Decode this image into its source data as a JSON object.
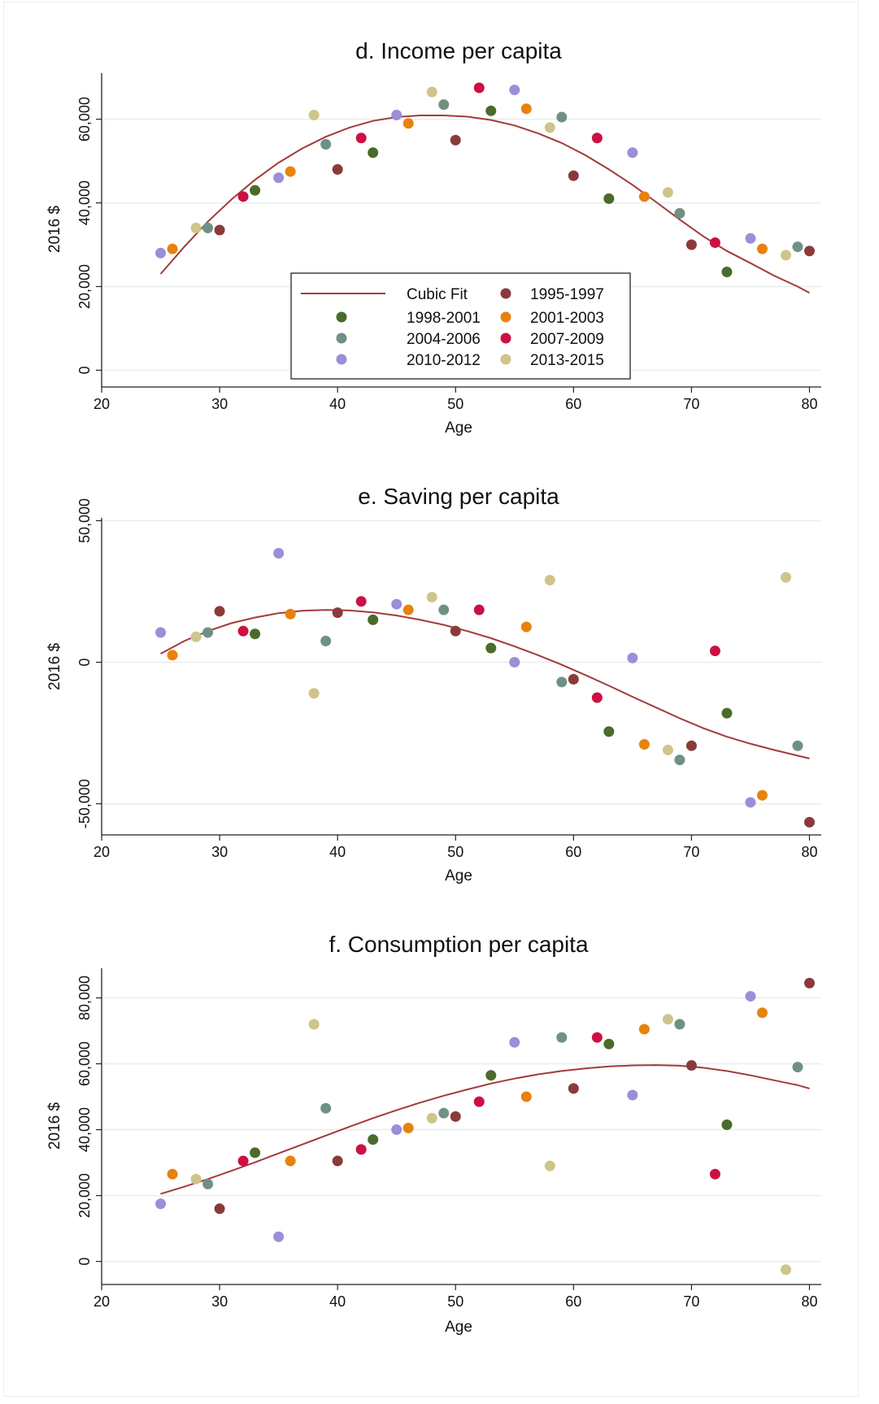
{
  "period_colors": {
    "1995-1997": "#8b3a3a",
    "1998-2001": "#4a6b2a",
    "2001-2003": "#e8820c",
    "2004-2006": "#6f9184",
    "2007-2009": "#cc1043",
    "2010-2012": "#9a8fd8",
    "2013-2015": "#cfc48a"
  },
  "fit_color": "#a23b3b",
  "grid_color": "#e6eef0",
  "chart_data": [
    {
      "type": "scatter",
      "title": "d. Income per capita",
      "xlabel": "Age",
      "ylabel": "2016 $",
      "xlim": [
        20,
        81
      ],
      "ylim": [
        -4000,
        71000
      ],
      "xticks": [
        20,
        30,
        40,
        50,
        60,
        70,
        80
      ],
      "xtick_labels": [
        "20",
        "30",
        "40",
        "50",
        "60",
        "70",
        "80"
      ],
      "yticks": [
        0,
        20000,
        40000,
        60000
      ],
      "ytick_labels": [
        "0",
        "20,000",
        "40,000",
        "60,000"
      ],
      "grid": true,
      "legend": {
        "position": "inside-bottom-center",
        "entries": [
          "Cubic Fit",
          "1995-1997",
          "1998-2001",
          "2001-2003",
          "2004-2006",
          "2007-2009",
          "2010-2012",
          "2013-2015"
        ]
      },
      "fit": {
        "name": "Cubic Fit",
        "x": [
          25,
          27,
          29,
          31,
          33,
          35,
          37,
          39,
          41,
          43,
          45,
          47,
          49,
          51,
          53,
          55,
          57,
          59,
          61,
          63,
          65,
          67,
          69,
          71,
          73,
          75,
          77,
          79,
          80
        ],
        "y": [
          23000,
          29500,
          35500,
          40800,
          45500,
          49600,
          53000,
          55800,
          58000,
          59600,
          60500,
          60900,
          60900,
          60600,
          59800,
          58500,
          56600,
          54300,
          51400,
          48000,
          44300,
          40200,
          36000,
          32000,
          28500,
          25600,
          22600,
          20000,
          18500
        ]
      },
      "series": [
        {
          "name": "1995-1997",
          "points": [
            [
              30,
              33500
            ],
            [
              40,
              48000
            ],
            [
              50,
              55000
            ],
            [
              60,
              46500
            ],
            [
              70,
              30000
            ],
            [
              80,
              28500
            ]
          ]
        },
        {
          "name": "1998-2001",
          "points": [
            [
              33,
              43000
            ],
            [
              43,
              52000
            ],
            [
              53,
              62000
            ],
            [
              63,
              41000
            ],
            [
              73,
              23500
            ]
          ]
        },
        {
          "name": "2001-2003",
          "points": [
            [
              26,
              29000
            ],
            [
              36,
              47500
            ],
            [
              46,
              59000
            ],
            [
              56,
              62500
            ],
            [
              66,
              41500
            ],
            [
              76,
              29000
            ]
          ]
        },
        {
          "name": "2004-2006",
          "points": [
            [
              29,
              34000
            ],
            [
              39,
              54000
            ],
            [
              49,
              63500
            ],
            [
              59,
              60500
            ],
            [
              69,
              37500
            ],
            [
              79,
              29500
            ]
          ]
        },
        {
          "name": "2007-2009",
          "points": [
            [
              32,
              41500
            ],
            [
              42,
              55500
            ],
            [
              52,
              67500
            ],
            [
              62,
              55500
            ],
            [
              72,
              30500
            ]
          ]
        },
        {
          "name": "2010-2012",
          "points": [
            [
              25,
              28000
            ],
            [
              35,
              46000
            ],
            [
              45,
              61000
            ],
            [
              55,
              67000
            ],
            [
              65,
              52000
            ],
            [
              75,
              31500
            ]
          ]
        },
        {
          "name": "2013-2015",
          "points": [
            [
              28,
              34000
            ],
            [
              38,
              61000
            ],
            [
              48,
              66500
            ],
            [
              58,
              58000
            ],
            [
              68,
              42500
            ],
            [
              78,
              27500
            ]
          ]
        }
      ]
    },
    {
      "type": "scatter",
      "title": "e. Saving per capita",
      "xlabel": "Age",
      "ylabel": "2016 $",
      "xlim": [
        20,
        81
      ],
      "ylim": [
        -61000,
        51000
      ],
      "xticks": [
        20,
        30,
        40,
        50,
        60,
        70,
        80
      ],
      "xtick_labels": [
        "20",
        "30",
        "40",
        "50",
        "60",
        "70",
        "80"
      ],
      "yticks": [
        -50000,
        0,
        50000
      ],
      "ytick_labels": [
        "-50,000",
        "0",
        "50,000"
      ],
      "grid": true,
      "fit": {
        "name": "Cubic Fit",
        "x": [
          25,
          27,
          29,
          31,
          33,
          35,
          37,
          39,
          41,
          43,
          45,
          47,
          49,
          51,
          53,
          55,
          57,
          59,
          61,
          63,
          65,
          67,
          69,
          71,
          73,
          75,
          77,
          79,
          80
        ],
        "y": [
          3000,
          7500,
          11000,
          13800,
          15800,
          17300,
          18200,
          18500,
          18300,
          17600,
          16500,
          15000,
          13200,
          11000,
          8500,
          5600,
          2500,
          -900,
          -4500,
          -8300,
          -12200,
          -16000,
          -19800,
          -23300,
          -26300,
          -28800,
          -31000,
          -33000,
          -34000
        ]
      },
      "series": [
        {
          "name": "1995-1997",
          "points": [
            [
              30,
              18000
            ],
            [
              40,
              17500
            ],
            [
              50,
              11000
            ],
            [
              60,
              -6000
            ],
            [
              70,
              -29500
            ],
            [
              80,
              -56500
            ]
          ]
        },
        {
          "name": "1998-2001",
          "points": [
            [
              33,
              10000
            ],
            [
              43,
              15000
            ],
            [
              53,
              5000
            ],
            [
              63,
              -24500
            ],
            [
              73,
              -18000
            ]
          ]
        },
        {
          "name": "2001-2003",
          "points": [
            [
              26,
              2500
            ],
            [
              36,
              17000
            ],
            [
              46,
              18500
            ],
            [
              56,
              12500
            ],
            [
              66,
              -29000
            ],
            [
              76,
              -47000
            ]
          ]
        },
        {
          "name": "2004-2006",
          "points": [
            [
              29,
              10500
            ],
            [
              39,
              7500
            ],
            [
              49,
              18500
            ],
            [
              59,
              -7000
            ],
            [
              69,
              -34500
            ],
            [
              79,
              -29500
            ]
          ]
        },
        {
          "name": "2007-2009",
          "points": [
            [
              32,
              11000
            ],
            [
              42,
              21500
            ],
            [
              52,
              18500
            ],
            [
              62,
              -12500
            ],
            [
              72,
              4000
            ]
          ]
        },
        {
          "name": "2010-2012",
          "points": [
            [
              25,
              10500
            ],
            [
              35,
              38500
            ],
            [
              45,
              20500
            ],
            [
              55,
              0
            ],
            [
              65,
              1500
            ],
            [
              75,
              -49500
            ]
          ]
        },
        {
          "name": "2013-2015",
          "points": [
            [
              28,
              9000
            ],
            [
              38,
              -11000
            ],
            [
              48,
              23000
            ],
            [
              58,
              29000
            ],
            [
              68,
              -31000
            ],
            [
              78,
              30000
            ]
          ]
        }
      ]
    },
    {
      "type": "scatter",
      "title": "f. Consumption per capita",
      "xlabel": "Age",
      "ylabel": "2016 $",
      "xlim": [
        20,
        81
      ],
      "ylim": [
        -7000,
        89000
      ],
      "xticks": [
        20,
        30,
        40,
        50,
        60,
        70,
        80
      ],
      "xtick_labels": [
        "20",
        "30",
        "40",
        "50",
        "60",
        "70",
        "80"
      ],
      "yticks": [
        0,
        20000,
        40000,
        60000,
        80000
      ],
      "ytick_labels": [
        "0",
        "20,000",
        "40,000",
        "60,000",
        "80,000"
      ],
      "grid": true,
      "fit": {
        "name": "Cubic Fit",
        "x": [
          25,
          27,
          29,
          31,
          33,
          35,
          37,
          39,
          41,
          43,
          45,
          47,
          49,
          51,
          53,
          55,
          57,
          59,
          61,
          63,
          65,
          67,
          69,
          71,
          73,
          75,
          77,
          79,
          80
        ],
        "y": [
          20500,
          22700,
          25000,
          27500,
          30100,
          32800,
          35500,
          38200,
          40900,
          43500,
          45900,
          48200,
          50300,
          52200,
          54000,
          55500,
          56800,
          57800,
          58600,
          59200,
          59500,
          59600,
          59400,
          58800,
          57800,
          56500,
          55000,
          53500,
          52500
        ]
      },
      "series": [
        {
          "name": "1995-1997",
          "points": [
            [
              30,
              16000
            ],
            [
              40,
              30500
            ],
            [
              50,
              44000
            ],
            [
              60,
              52500
            ],
            [
              70,
              59500
            ],
            [
              80,
              84500
            ]
          ]
        },
        {
          "name": "1998-2001",
          "points": [
            [
              33,
              33000
            ],
            [
              43,
              37000
            ],
            [
              53,
              56500
            ],
            [
              63,
              66000
            ],
            [
              73,
              41500
            ]
          ]
        },
        {
          "name": "2001-2003",
          "points": [
            [
              26,
              26500
            ],
            [
              36,
              30500
            ],
            [
              46,
              40500
            ],
            [
              56,
              50000
            ],
            [
              66,
              70500
            ],
            [
              76,
              75500
            ]
          ]
        },
        {
          "name": "2004-2006",
          "points": [
            [
              29,
              23500
            ],
            [
              39,
              46500
            ],
            [
              49,
              45000
            ],
            [
              59,
              68000
            ],
            [
              69,
              72000
            ],
            [
              79,
              59000
            ]
          ]
        },
        {
          "name": "2007-2009",
          "points": [
            [
              32,
              30500
            ],
            [
              42,
              34000
            ],
            [
              52,
              48500
            ],
            [
              62,
              68000
            ],
            [
              72,
              26500
            ]
          ]
        },
        {
          "name": "2010-2012",
          "points": [
            [
              25,
              17500
            ],
            [
              35,
              7500
            ],
            [
              45,
              40000
            ],
            [
              55,
              66500
            ],
            [
              65,
              50500
            ],
            [
              75,
              80500
            ]
          ]
        },
        {
          "name": "2013-2015",
          "points": [
            [
              28,
              25000
            ],
            [
              38,
              72000
            ],
            [
              48,
              43500
            ],
            [
              58,
              29000
            ],
            [
              68,
              73500
            ],
            [
              78,
              -2500
            ]
          ]
        }
      ]
    }
  ]
}
